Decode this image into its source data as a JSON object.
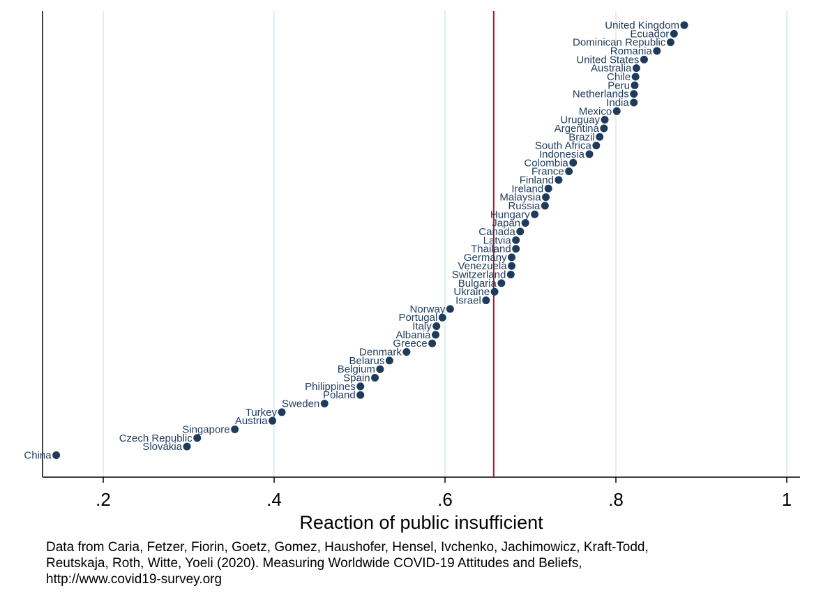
{
  "chart_data": {
    "type": "scatter",
    "xlabel": "Reaction of public insufficient",
    "xticks": [
      ".2",
      ".4",
      ".6",
      ".8",
      "1"
    ],
    "xtick_values": [
      0.2,
      0.4,
      0.6,
      0.8,
      1.0
    ],
    "xlim": [
      0.13,
      1.015
    ],
    "reference_line_x": 0.657,
    "reference_line_color": "#a6192e",
    "marker_color": "#1f3b5c",
    "grid": "vertical",
    "points": [
      {
        "label": "United Kingdom",
        "x": 0.88
      },
      {
        "label": "Ecuador",
        "x": 0.868
      },
      {
        "label": "Dominican Republic",
        "x": 0.864
      },
      {
        "label": "Romania",
        "x": 0.848
      },
      {
        "label": "United States",
        "x": 0.833
      },
      {
        "label": "Australia",
        "x": 0.824
      },
      {
        "label": "Chile",
        "x": 0.823
      },
      {
        "label": "Peru",
        "x": 0.822
      },
      {
        "label": "Netherlands",
        "x": 0.821
      },
      {
        "label": "India",
        "x": 0.821
      },
      {
        "label": "Mexico",
        "x": 0.801
      },
      {
        "label": "Uruguay",
        "x": 0.787
      },
      {
        "label": "Argentina",
        "x": 0.786
      },
      {
        "label": "Brazil",
        "x": 0.781
      },
      {
        "label": "South Africa",
        "x": 0.777
      },
      {
        "label": "Indonesia",
        "x": 0.769
      },
      {
        "label": "Colombia",
        "x": 0.75
      },
      {
        "label": "France",
        "x": 0.745
      },
      {
        "label": "Finland",
        "x": 0.733
      },
      {
        "label": "Ireland",
        "x": 0.721
      },
      {
        "label": "Malaysia",
        "x": 0.718
      },
      {
        "label": "Russia",
        "x": 0.717
      },
      {
        "label": "Hungary",
        "x": 0.705
      },
      {
        "label": "Japan",
        "x": 0.694
      },
      {
        "label": "Canada",
        "x": 0.688
      },
      {
        "label": "Latvia",
        "x": 0.683
      },
      {
        "label": "Thailand",
        "x": 0.683
      },
      {
        "label": "Germany",
        "x": 0.678
      },
      {
        "label": "Venezuela",
        "x": 0.678
      },
      {
        "label": "Switzerland",
        "x": 0.677
      },
      {
        "label": "Bulgaria",
        "x": 0.666
      },
      {
        "label": "Ukraine",
        "x": 0.658
      },
      {
        "label": "Israel",
        "x": 0.648
      },
      {
        "label": "Norway",
        "x": 0.606
      },
      {
        "label": "Portugal",
        "x": 0.597
      },
      {
        "label": "Italy",
        "x": 0.59
      },
      {
        "label": "Albania",
        "x": 0.589
      },
      {
        "label": "Greece",
        "x": 0.585
      },
      {
        "label": "Denmark",
        "x": 0.555
      },
      {
        "label": "Belarus",
        "x": 0.535
      },
      {
        "label": "Belgium",
        "x": 0.524
      },
      {
        "label": "Spain",
        "x": 0.518
      },
      {
        "label": "Philippines",
        "x": 0.501
      },
      {
        "label": "Poland",
        "x": 0.501
      },
      {
        "label": "Sweden",
        "x": 0.459
      },
      {
        "label": "Turkey",
        "x": 0.409
      },
      {
        "label": "Austria",
        "x": 0.398
      },
      {
        "label": "Singapore",
        "x": 0.354
      },
      {
        "label": "Czech Republic",
        "x": 0.31
      },
      {
        "label": "Slovakia",
        "x": 0.298
      },
      {
        "label": "China",
        "x": 0.145
      }
    ]
  },
  "source_note": [
    "Data from Caria, Fetzer, Fiorin, Goetz, Gomez, Haushofer, Hensel, Ivchenko, Jachimowicz, Kraft-Todd,",
    "Reutskaja, Roth, Witte, Yoeli (2020). Measuring Worldwide COVID-19 Attitudes and Beliefs,",
    "http://www.covid19-survey.org"
  ]
}
